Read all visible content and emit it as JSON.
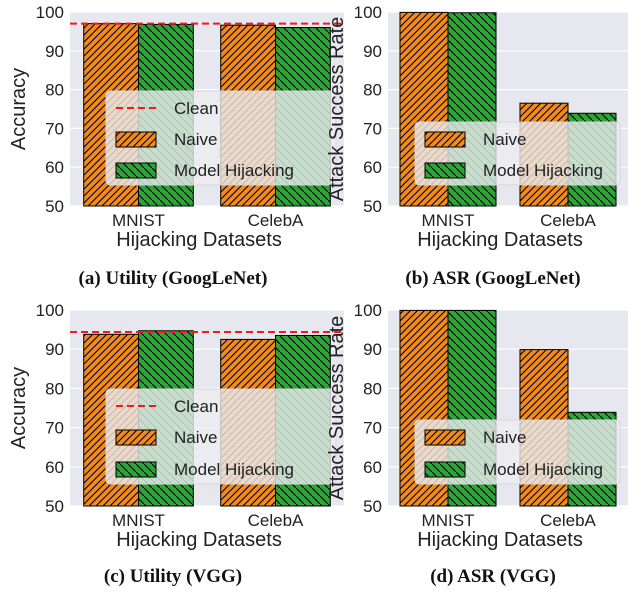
{
  "colors": {
    "naive": "#f28a1e",
    "hijack": "#27a833",
    "clean": "#ee1c1c",
    "plot_bg": "#e6e7ef",
    "grid": "#ffffff",
    "legend_bg": "#ececf0"
  },
  "chart_data": [
    {
      "type": "bar",
      "caption": "(a) Utility (GoogLeNet)",
      "xlabel": "Hijacking Datasets",
      "ylabel": "Accuracy",
      "ylim": [
        50,
        100
      ],
      "yticks": [
        "50",
        "60",
        "70",
        "80",
        "90",
        "100"
      ],
      "categories": [
        "MNIST",
        "CelebA"
      ],
      "series": [
        {
          "name": "Naive",
          "values": [
            97.0,
            96.6
          ]
        },
        {
          "name": "Model Hijacking",
          "values": [
            96.8,
            96.0
          ]
        }
      ],
      "reference_line": {
        "name": "Clean",
        "value": 97.0
      },
      "legend": [
        "Clean",
        "Naive",
        "Model Hijacking"
      ],
      "legend_position": "lower-right",
      "grid": true
    },
    {
      "type": "bar",
      "caption": "(b) ASR (GoogLeNet)",
      "xlabel": "Hijacking Datasets",
      "ylabel": "Attack Success Rate",
      "ylim": [
        50,
        100
      ],
      "yticks": [
        "50",
        "60",
        "70",
        "80",
        "90",
        "100"
      ],
      "categories": [
        "MNIST",
        "CelebA"
      ],
      "series": [
        {
          "name": "Naive",
          "values": [
            99.9,
            76.5
          ]
        },
        {
          "name": "Model Hijacking",
          "values": [
            99.8,
            73.9
          ]
        }
      ],
      "legend": [
        "Naive",
        "Model Hijacking"
      ],
      "legend_position": "lower-right",
      "grid": true
    },
    {
      "type": "bar",
      "caption": "(c) Utility (VGG)",
      "xlabel": "Hijacking Datasets",
      "ylabel": "Accuracy",
      "ylim": [
        50,
        100
      ],
      "yticks": [
        "50",
        "60",
        "70",
        "80",
        "90",
        "100"
      ],
      "categories": [
        "MNIST",
        "CelebA"
      ],
      "series": [
        {
          "name": "Naive",
          "values": [
            93.8,
            92.5
          ]
        },
        {
          "name": "Model Hijacking",
          "values": [
            94.7,
            93.5
          ]
        }
      ],
      "reference_line": {
        "name": "Clean",
        "value": 94.4
      },
      "legend": [
        "Clean",
        "Naive",
        "Model Hijacking"
      ],
      "legend_position": "lower-right",
      "grid": true
    },
    {
      "type": "bar",
      "caption": "(d) ASR (VGG)",
      "xlabel": "Hijacking Datasets",
      "ylabel": "Attack Success Rate",
      "ylim": [
        50,
        100
      ],
      "yticks": [
        "50",
        "60",
        "70",
        "80",
        "90",
        "100"
      ],
      "categories": [
        "MNIST",
        "CelebA"
      ],
      "series": [
        {
          "name": "Naive",
          "values": [
            99.9,
            89.9
          ]
        },
        {
          "name": "Model Hijacking",
          "values": [
            99.9,
            73.9
          ]
        }
      ],
      "legend": [
        "Naive",
        "Model Hijacking"
      ],
      "legend_position": "lower-right",
      "grid": true
    }
  ]
}
